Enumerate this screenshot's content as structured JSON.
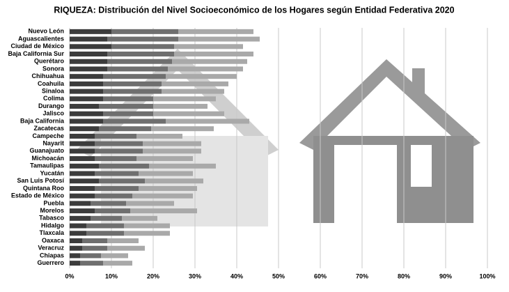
{
  "chart_data": {
    "type": "stacked-barh",
    "title": "RIQUEZA: Distribución del Nivel Socioeconómico  de los Hogares según Entidad Federativa 2020",
    "categories": [
      "Nuevo León",
      "Aguascalientes",
      "Ciudad de México",
      "Baja California Sur",
      "Querétaro",
      "Sonora",
      "Chihuahua",
      "Coahuila",
      "Sinaloa",
      "Colima",
      "Durango",
      "Jalisco",
      "Baja California",
      "Zacatecas",
      "Campeche",
      "Nayarit",
      "Guanajuato",
      "Michoacán",
      "Tamaulipas",
      "Yucatán",
      "San Luis Potosí",
      "Quintana Roo",
      "Estado de México",
      "Puebla",
      "Morelos",
      "Tabasco",
      "Hidalgo",
      "Tlaxcala",
      "Oaxaca",
      "Veracruz",
      "Chiapas",
      "Guerrero"
    ],
    "series": [
      {
        "color": "#3c3c3c",
        "values": [
          10,
          9,
          10,
          9,
          9,
          9,
          8,
          8,
          8,
          8,
          7,
          8,
          8,
          7,
          6,
          6,
          6,
          6,
          7,
          6,
          7,
          6,
          6,
          5,
          6,
          5,
          4,
          4,
          3,
          3,
          2.5,
          2.5
        ]
      },
      {
        "color": "#6f6f6f",
        "values": [
          16,
          17,
          15,
          16,
          15.5,
          14.5,
          15,
          14,
          14,
          12,
          13,
          12,
          15,
          12.5,
          10,
          11.5,
          11.5,
          10,
          12,
          10.5,
          11,
          10.5,
          9,
          8.5,
          8.5,
          7.5,
          9,
          9,
          6,
          6,
          5,
          5.5
        ]
      },
      {
        "color": "#a9a9a9",
        "values": [
          18,
          19.5,
          16.5,
          19,
          18,
          18,
          17,
          16,
          15,
          15,
          13,
          17,
          20,
          15,
          11,
          14,
          14,
          13.5,
          16,
          13,
          14,
          14,
          14.5,
          11.5,
          16,
          8.5,
          11,
          11,
          7.5,
          9,
          6.5,
          7
        ]
      }
    ],
    "xlim": [
      0,
      100
    ],
    "xticks": [
      {
        "value": 0,
        "label": "0%"
      },
      {
        "value": 10,
        "label": "10%"
      },
      {
        "value": 20,
        "label": "20%"
      },
      {
        "value": 30,
        "label": "30%"
      },
      {
        "value": 40,
        "label": "40%"
      },
      {
        "value": 50,
        "label": "50%"
      },
      {
        "value": 60,
        "label": "60%"
      },
      {
        "value": 70,
        "label": "70%"
      },
      {
        "value": 80,
        "label": "80%"
      },
      {
        "value": 90,
        "label": "90%"
      },
      {
        "value": 100,
        "label": "100%"
      }
    ],
    "grid": true
  }
}
